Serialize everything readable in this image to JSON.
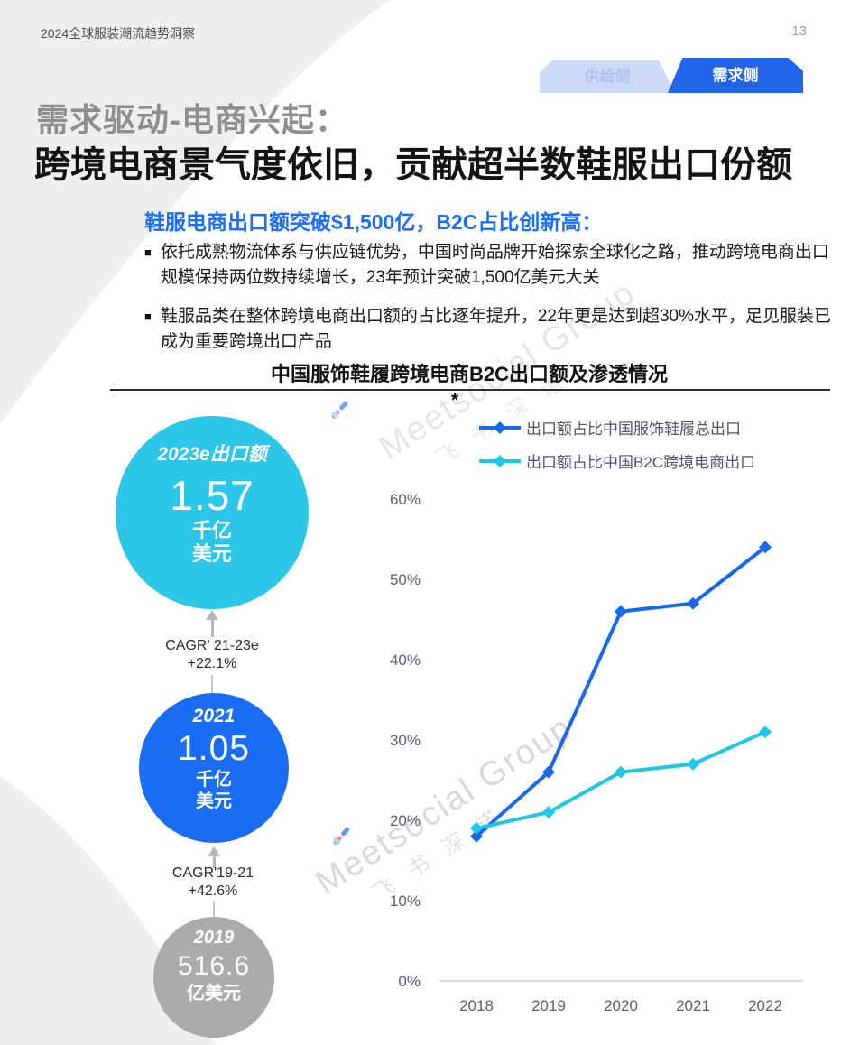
{
  "header": {
    "title": "2024全球服装潮流趋势洞察",
    "page_number": "13"
  },
  "tabs": [
    {
      "label": "供给侧",
      "active": false
    },
    {
      "label": "需求侧",
      "active": true
    }
  ],
  "title": {
    "line1": "需求驱动-电商兴起：",
    "line2": "跨境电商景气度依旧，贡献超半数鞋服出口份额"
  },
  "subtitle": "鞋服电商出口额突破$1,500亿，B2C占比创新高：",
  "bullets": [
    "依托成熟物流体系与供应链优势，中国时尚品牌开始探索全球化之路，推动跨境电商出口规模保持两位数持续增长，23年预计突破1,500亿美元大关",
    "鞋服品类在整体跨境电商出口额的占比逐年提升，22年更是达到超30%水平，足见服装已成为重要跨境出口产品"
  ],
  "chart_section": {
    "title": "中国服饰鞋履跨境电商B2C出口额及渗透情况",
    "footnote_marker": "*"
  },
  "stat_circles": [
    {
      "year_label": "2023e出口额",
      "value": "1.57",
      "unit_lines": [
        "千亿",
        "美元"
      ],
      "color": "#2bc6e8"
    },
    {
      "year_label": "2021",
      "value": "1.05",
      "unit_lines": [
        "千亿",
        "美元"
      ],
      "color": "#1a6df2"
    },
    {
      "year_label": "2019",
      "value": "516.6",
      "unit_lines": [
        "亿美元",
        ""
      ],
      "color": "#ababab"
    }
  ],
  "cagr_labels": [
    {
      "line1": "CAGR' 21-23e",
      "line2": "+22.1%"
    },
    {
      "line1": "CAGR'19-21",
      "line2": "+42.6%"
    }
  ],
  "watermark": {
    "en": "Meetsocial Group",
    "cjk": "飞书深诺"
  },
  "colors": {
    "accent_blue": "#1a6dff",
    "tab_active_bg": "#2165e9",
    "tab_active_text": "#ffffff",
    "tab_inactive_bg": "#ccd9f7",
    "tab_inactive_text": "#aec3f0",
    "series_blue": "#1668ee",
    "series_cyan": "#1ec7e6"
  },
  "chart_data": {
    "type": "line",
    "x": [
      "2018",
      "2019",
      "2020",
      "2021",
      "2022"
    ],
    "series": [
      {
        "name": "出口额占比中国服饰鞋履总出口",
        "color": "#1668ee",
        "values": [
          18,
          26,
          46,
          47,
          54
        ]
      },
      {
        "name": "出口额占比中国B2C跨境电商出口",
        "color": "#1ec7e6",
        "values": [
          19,
          21,
          26,
          27,
          31
        ]
      }
    ],
    "title": "中国服饰鞋履跨境电商B2C出口额及渗透情况",
    "xlabel": "",
    "ylabel": "",
    "ylim": [
      0,
      60
    ],
    "ytick_step": 10,
    "ytick_format": "percent",
    "grid": false,
    "legend_position": "top-right",
    "marker": "diamond"
  }
}
